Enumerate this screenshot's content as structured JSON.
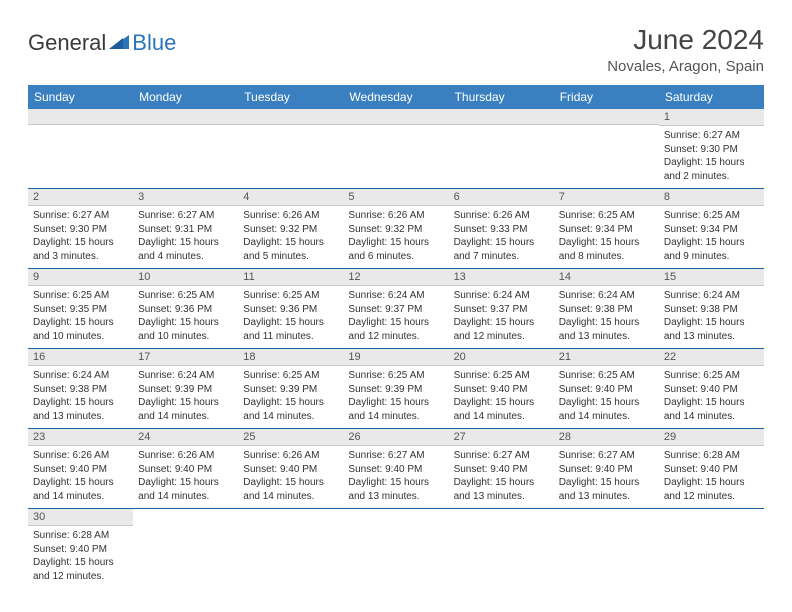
{
  "branding": {
    "logo_part1": "General",
    "logo_part2": "Blue",
    "logo_triangle_color": "#2a74b8",
    "logo_text_color": "#3a3a3a"
  },
  "header": {
    "title": "June 2024",
    "location": "Novales, Aragon, Spain"
  },
  "styling": {
    "header_bg": "#3a80c0",
    "header_text": "#ffffff",
    "daynum_bg": "#e9e9e9",
    "row_border": "#1f5c9e",
    "body_font_size": 10,
    "daynum_font_size": 11,
    "header_font_size": 12
  },
  "weekdays": [
    "Sunday",
    "Monday",
    "Tuesday",
    "Wednesday",
    "Thursday",
    "Friday",
    "Saturday"
  ],
  "weeks": [
    [
      {
        "blank": true
      },
      {
        "blank": true
      },
      {
        "blank": true
      },
      {
        "blank": true
      },
      {
        "blank": true
      },
      {
        "blank": true
      },
      {
        "num": "1",
        "sunrise": "Sunrise: 6:27 AM",
        "sunset": "Sunset: 9:30 PM",
        "daylight": "Daylight: 15 hours and 2 minutes."
      }
    ],
    [
      {
        "num": "2",
        "sunrise": "Sunrise: 6:27 AM",
        "sunset": "Sunset: 9:30 PM",
        "daylight": "Daylight: 15 hours and 3 minutes."
      },
      {
        "num": "3",
        "sunrise": "Sunrise: 6:27 AM",
        "sunset": "Sunset: 9:31 PM",
        "daylight": "Daylight: 15 hours and 4 minutes."
      },
      {
        "num": "4",
        "sunrise": "Sunrise: 6:26 AM",
        "sunset": "Sunset: 9:32 PM",
        "daylight": "Daylight: 15 hours and 5 minutes."
      },
      {
        "num": "5",
        "sunrise": "Sunrise: 6:26 AM",
        "sunset": "Sunset: 9:32 PM",
        "daylight": "Daylight: 15 hours and 6 minutes."
      },
      {
        "num": "6",
        "sunrise": "Sunrise: 6:26 AM",
        "sunset": "Sunset: 9:33 PM",
        "daylight": "Daylight: 15 hours and 7 minutes."
      },
      {
        "num": "7",
        "sunrise": "Sunrise: 6:25 AM",
        "sunset": "Sunset: 9:34 PM",
        "daylight": "Daylight: 15 hours and 8 minutes."
      },
      {
        "num": "8",
        "sunrise": "Sunrise: 6:25 AM",
        "sunset": "Sunset: 9:34 PM",
        "daylight": "Daylight: 15 hours and 9 minutes."
      }
    ],
    [
      {
        "num": "9",
        "sunrise": "Sunrise: 6:25 AM",
        "sunset": "Sunset: 9:35 PM",
        "daylight": "Daylight: 15 hours and 10 minutes."
      },
      {
        "num": "10",
        "sunrise": "Sunrise: 6:25 AM",
        "sunset": "Sunset: 9:36 PM",
        "daylight": "Daylight: 15 hours and 10 minutes."
      },
      {
        "num": "11",
        "sunrise": "Sunrise: 6:25 AM",
        "sunset": "Sunset: 9:36 PM",
        "daylight": "Daylight: 15 hours and 11 minutes."
      },
      {
        "num": "12",
        "sunrise": "Sunrise: 6:24 AM",
        "sunset": "Sunset: 9:37 PM",
        "daylight": "Daylight: 15 hours and 12 minutes."
      },
      {
        "num": "13",
        "sunrise": "Sunrise: 6:24 AM",
        "sunset": "Sunset: 9:37 PM",
        "daylight": "Daylight: 15 hours and 12 minutes."
      },
      {
        "num": "14",
        "sunrise": "Sunrise: 6:24 AM",
        "sunset": "Sunset: 9:38 PM",
        "daylight": "Daylight: 15 hours and 13 minutes."
      },
      {
        "num": "15",
        "sunrise": "Sunrise: 6:24 AM",
        "sunset": "Sunset: 9:38 PM",
        "daylight": "Daylight: 15 hours and 13 minutes."
      }
    ],
    [
      {
        "num": "16",
        "sunrise": "Sunrise: 6:24 AM",
        "sunset": "Sunset: 9:38 PM",
        "daylight": "Daylight: 15 hours and 13 minutes."
      },
      {
        "num": "17",
        "sunrise": "Sunrise: 6:24 AM",
        "sunset": "Sunset: 9:39 PM",
        "daylight": "Daylight: 15 hours and 14 minutes."
      },
      {
        "num": "18",
        "sunrise": "Sunrise: 6:25 AM",
        "sunset": "Sunset: 9:39 PM",
        "daylight": "Daylight: 15 hours and 14 minutes."
      },
      {
        "num": "19",
        "sunrise": "Sunrise: 6:25 AM",
        "sunset": "Sunset: 9:39 PM",
        "daylight": "Daylight: 15 hours and 14 minutes."
      },
      {
        "num": "20",
        "sunrise": "Sunrise: 6:25 AM",
        "sunset": "Sunset: 9:40 PM",
        "daylight": "Daylight: 15 hours and 14 minutes."
      },
      {
        "num": "21",
        "sunrise": "Sunrise: 6:25 AM",
        "sunset": "Sunset: 9:40 PM",
        "daylight": "Daylight: 15 hours and 14 minutes."
      },
      {
        "num": "22",
        "sunrise": "Sunrise: 6:25 AM",
        "sunset": "Sunset: 9:40 PM",
        "daylight": "Daylight: 15 hours and 14 minutes."
      }
    ],
    [
      {
        "num": "23",
        "sunrise": "Sunrise: 6:26 AM",
        "sunset": "Sunset: 9:40 PM",
        "daylight": "Daylight: 15 hours and 14 minutes."
      },
      {
        "num": "24",
        "sunrise": "Sunrise: 6:26 AM",
        "sunset": "Sunset: 9:40 PM",
        "daylight": "Daylight: 15 hours and 14 minutes."
      },
      {
        "num": "25",
        "sunrise": "Sunrise: 6:26 AM",
        "sunset": "Sunset: 9:40 PM",
        "daylight": "Daylight: 15 hours and 14 minutes."
      },
      {
        "num": "26",
        "sunrise": "Sunrise: 6:27 AM",
        "sunset": "Sunset: 9:40 PM",
        "daylight": "Daylight: 15 hours and 13 minutes."
      },
      {
        "num": "27",
        "sunrise": "Sunrise: 6:27 AM",
        "sunset": "Sunset: 9:40 PM",
        "daylight": "Daylight: 15 hours and 13 minutes."
      },
      {
        "num": "28",
        "sunrise": "Sunrise: 6:27 AM",
        "sunset": "Sunset: 9:40 PM",
        "daylight": "Daylight: 15 hours and 13 minutes."
      },
      {
        "num": "29",
        "sunrise": "Sunrise: 6:28 AM",
        "sunset": "Sunset: 9:40 PM",
        "daylight": "Daylight: 15 hours and 12 minutes."
      }
    ],
    [
      {
        "num": "30",
        "sunrise": "Sunrise: 6:28 AM",
        "sunset": "Sunset: 9:40 PM",
        "daylight": "Daylight: 15 hours and 12 minutes."
      },
      {
        "trailing": true
      },
      {
        "trailing": true
      },
      {
        "trailing": true
      },
      {
        "trailing": true
      },
      {
        "trailing": true
      },
      {
        "trailing": true
      }
    ]
  ]
}
